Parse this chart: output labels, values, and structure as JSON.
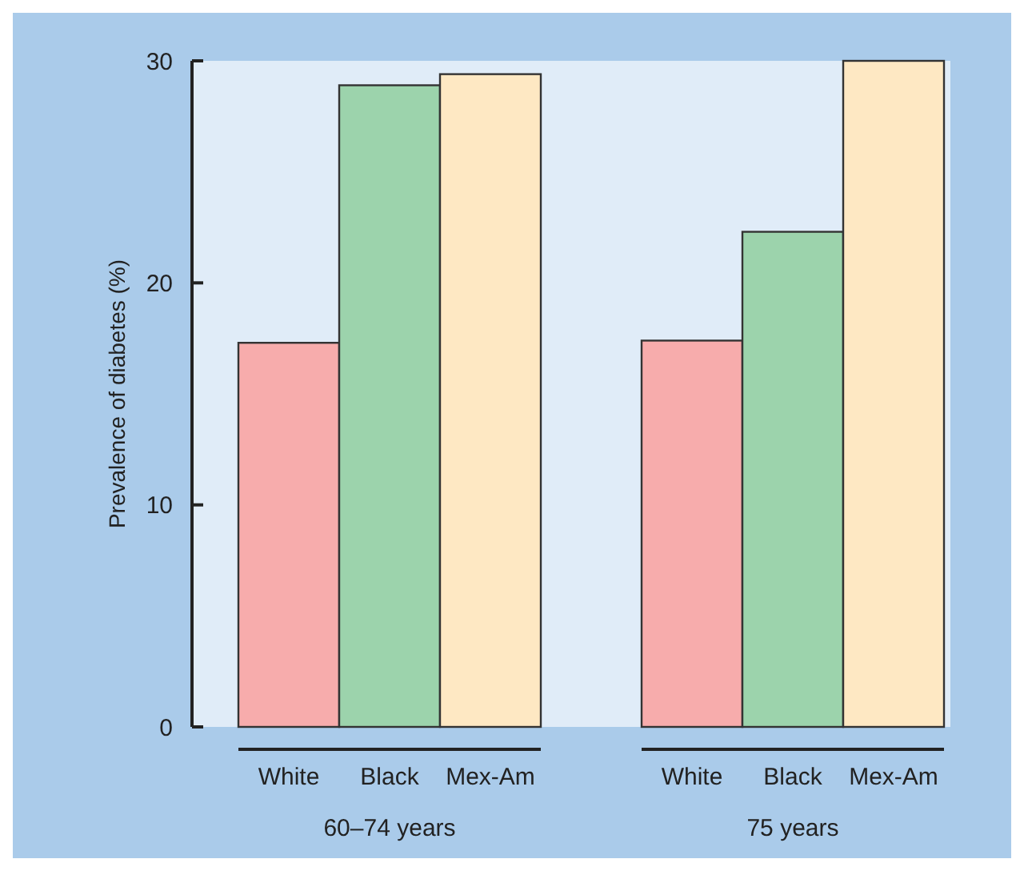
{
  "chart_data": {
    "type": "bar",
    "ylabel": "Prevalence of diabetes (%)",
    "categories": [
      "White",
      "Black",
      "Mex-Am",
      null,
      "White",
      "Black",
      "Mex-Am"
    ],
    "values": [
      17.3,
      28.9,
      29.4,
      null,
      17.4,
      22.3,
      30.0
    ],
    "colors": [
      "#f7acac",
      "#9cd3ac",
      "#fee8c3",
      null,
      "#f7acac",
      "#9cd3ac",
      "#fee8c3"
    ],
    "ylim": [
      0,
      30
    ],
    "yticks": [
      0,
      10,
      20,
      30
    ],
    "grid": false,
    "annotations": [
      "60–74 years",
      "75 years"
    ]
  }
}
